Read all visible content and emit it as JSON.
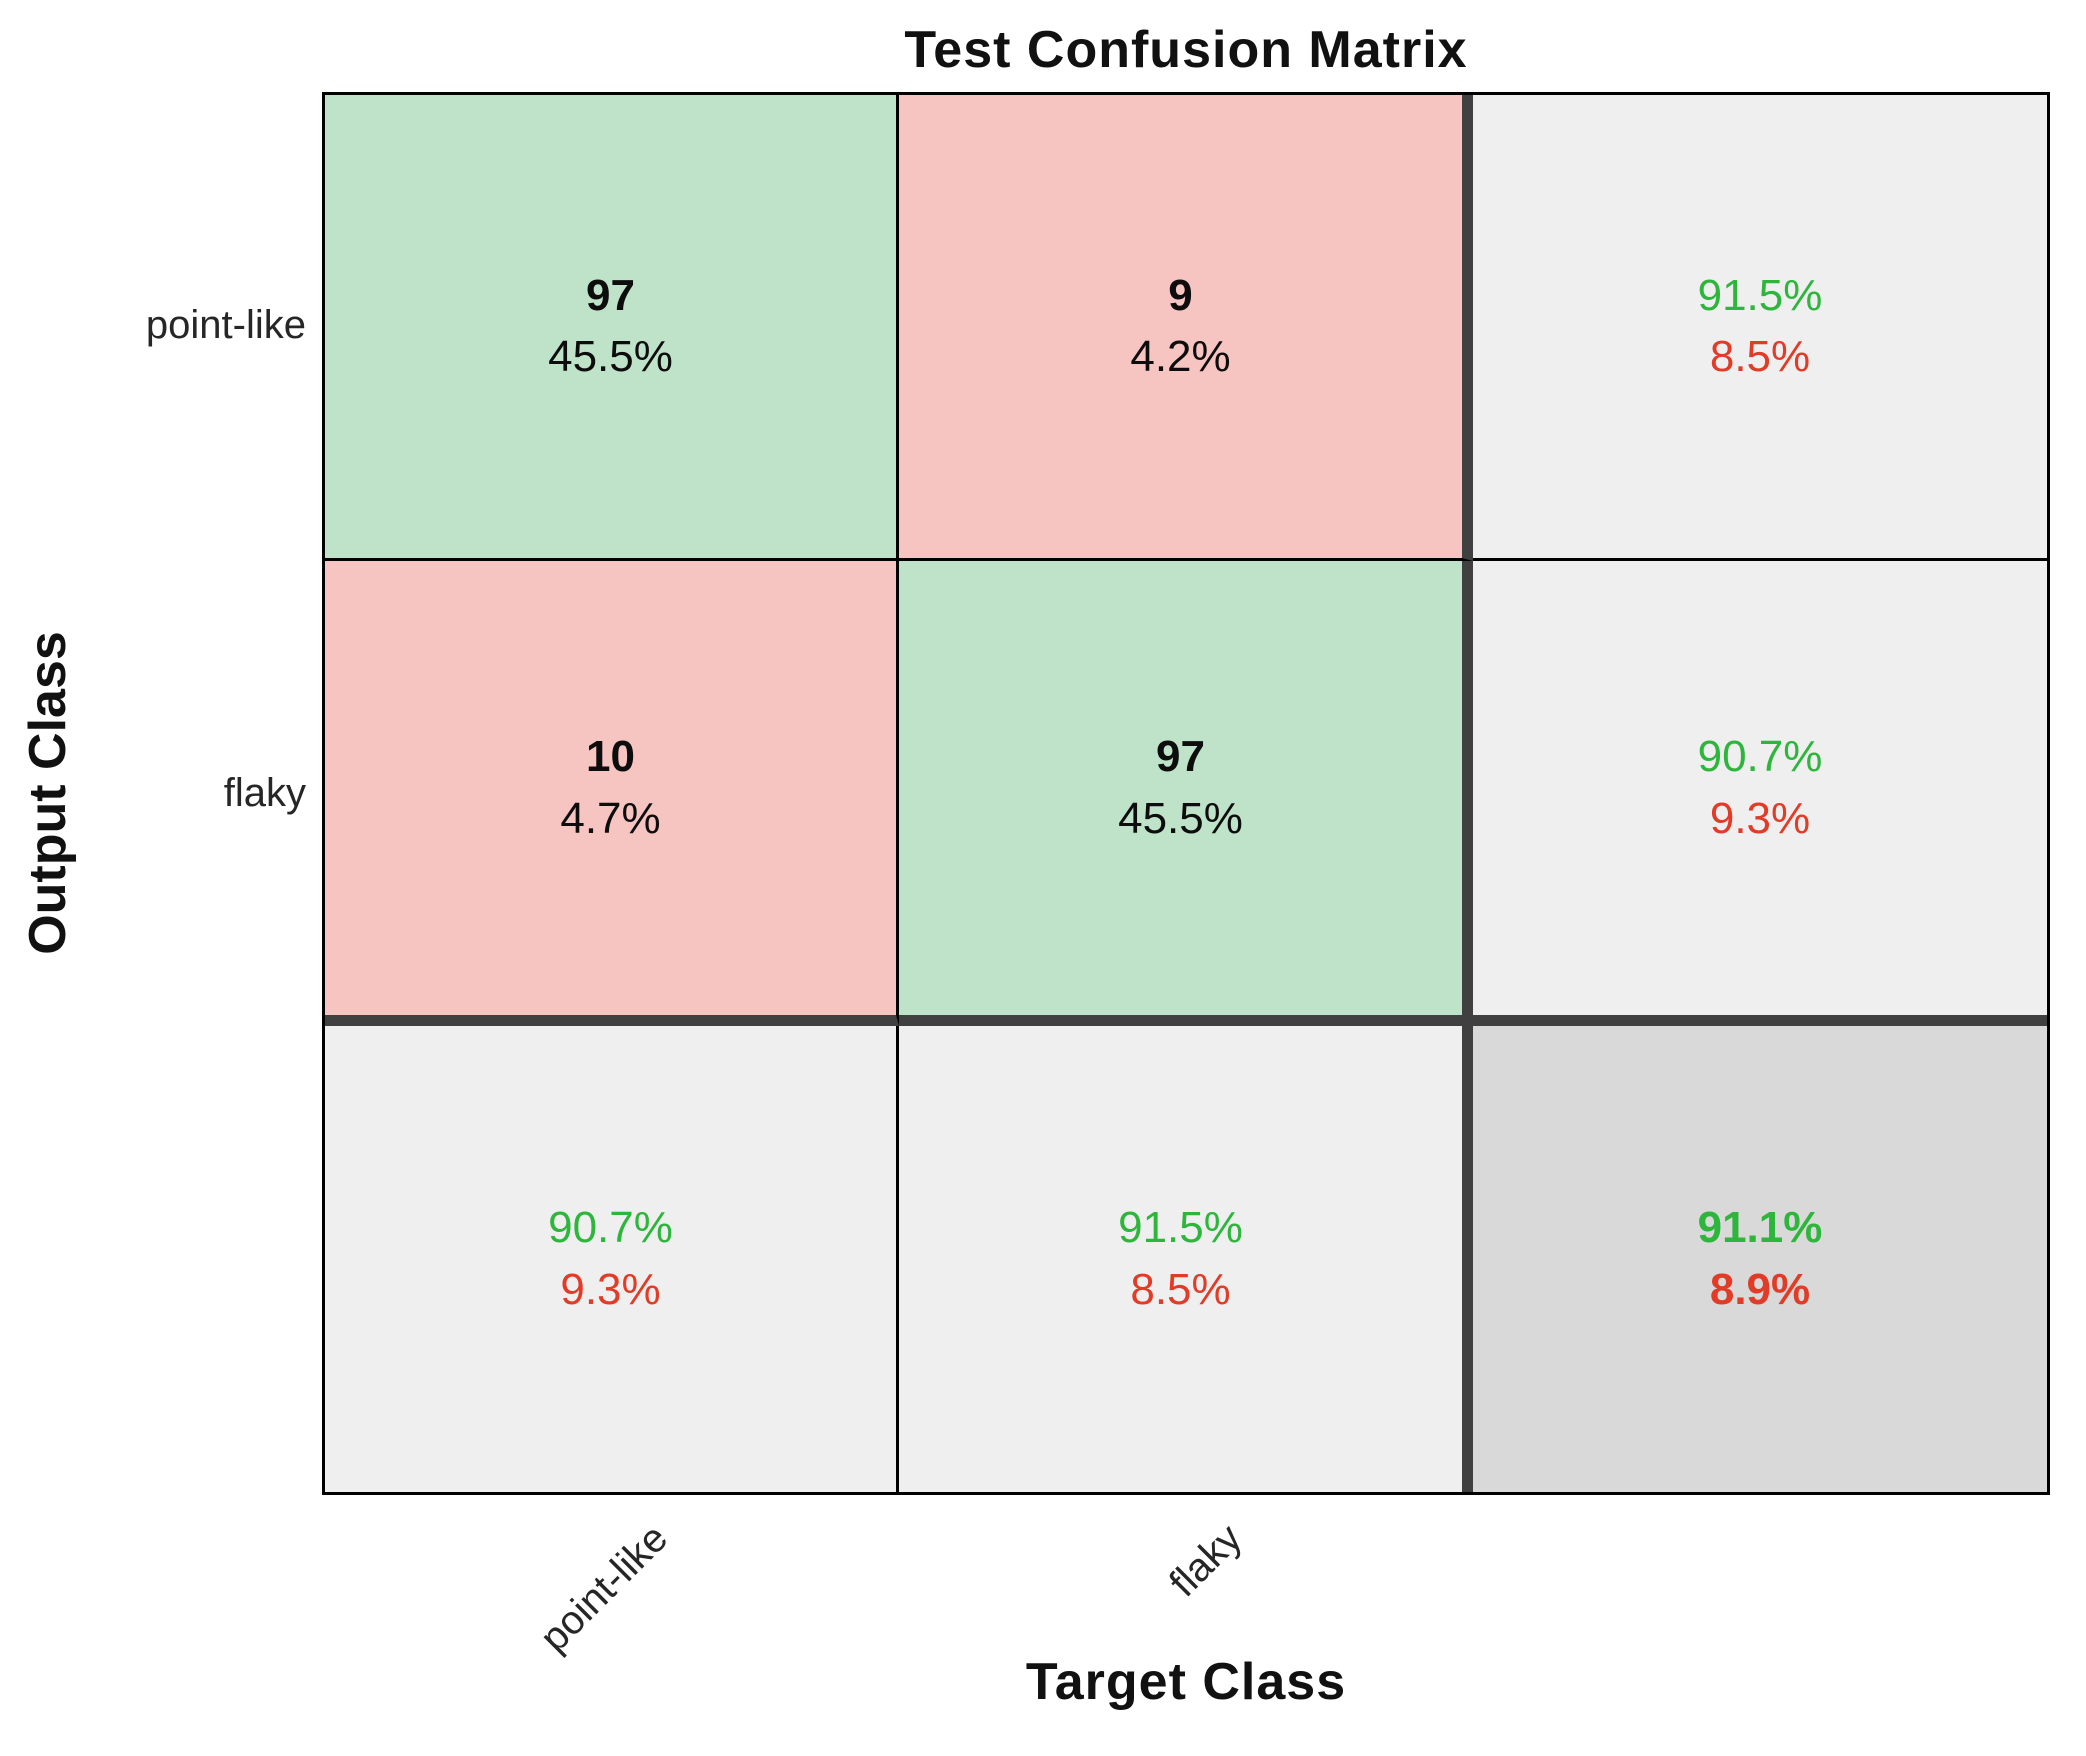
{
  "title": "Test Confusion Matrix",
  "axes": {
    "x_label": "Target Class",
    "y_label": "Output Class",
    "x_ticks": [
      "point-like",
      "flaky"
    ],
    "y_ticks": [
      "point-like",
      "flaky"
    ]
  },
  "matrix": {
    "rows": [
      {
        "cells": [
          {
            "line1": "97",
            "line2": "45.5%",
            "kind": "correct"
          },
          {
            "line1": "9",
            "line2": "4.2%",
            "kind": "incorrect"
          },
          {
            "line1": "91.5%",
            "line2": "8.5%",
            "kind": "row-summary"
          }
        ]
      },
      {
        "cells": [
          {
            "line1": "10",
            "line2": "4.7%",
            "kind": "incorrect"
          },
          {
            "line1": "97",
            "line2": "45.5%",
            "kind": "correct"
          },
          {
            "line1": "90.7%",
            "line2": "9.3%",
            "kind": "row-summary"
          }
        ]
      },
      {
        "cells": [
          {
            "line1": "90.7%",
            "line2": "9.3%",
            "kind": "column-summary"
          },
          {
            "line1": "91.5%",
            "line2": "8.5%",
            "kind": "column-summary"
          },
          {
            "line1": "91.1%",
            "line2": "8.9%",
            "kind": "overall-summary"
          }
        ]
      }
    ]
  },
  "colors": {
    "correct_cell_bg": "#bee3c8",
    "incorrect_cell_bg": "#f7c5c1",
    "summary_cell_bg": "#efefef",
    "total_cell_bg": "#d9d9d9",
    "good_pct_text": "#2db53c",
    "bad_pct_text": "#e03c28",
    "thick_grid_line": "#404040",
    "thin_grid_line": "#000000"
  },
  "chart_data": {
    "type": "heatmap",
    "title": "Test Confusion Matrix",
    "xlabel": "Target Class",
    "ylabel": "Output Class",
    "classes": [
      "point-like",
      "flaky"
    ],
    "counts": [
      [
        97,
        9
      ],
      [
        10,
        97
      ]
    ],
    "percent_of_total": [
      [
        45.5,
        4.2
      ],
      [
        4.7,
        45.5
      ]
    ],
    "row_summary_pct": [
      {
        "output_class": "point-like",
        "correct": 91.5,
        "incorrect": 8.5
      },
      {
        "output_class": "flaky",
        "correct": 90.7,
        "incorrect": 9.3
      }
    ],
    "column_summary_pct": [
      {
        "target_class": "point-like",
        "correct": 90.7,
        "incorrect": 9.3
      },
      {
        "target_class": "flaky",
        "correct": 91.5,
        "incorrect": 8.5
      }
    ],
    "overall_pct": {
      "correct": 91.1,
      "incorrect": 8.9
    },
    "legend_position": "none",
    "grid": "on"
  }
}
